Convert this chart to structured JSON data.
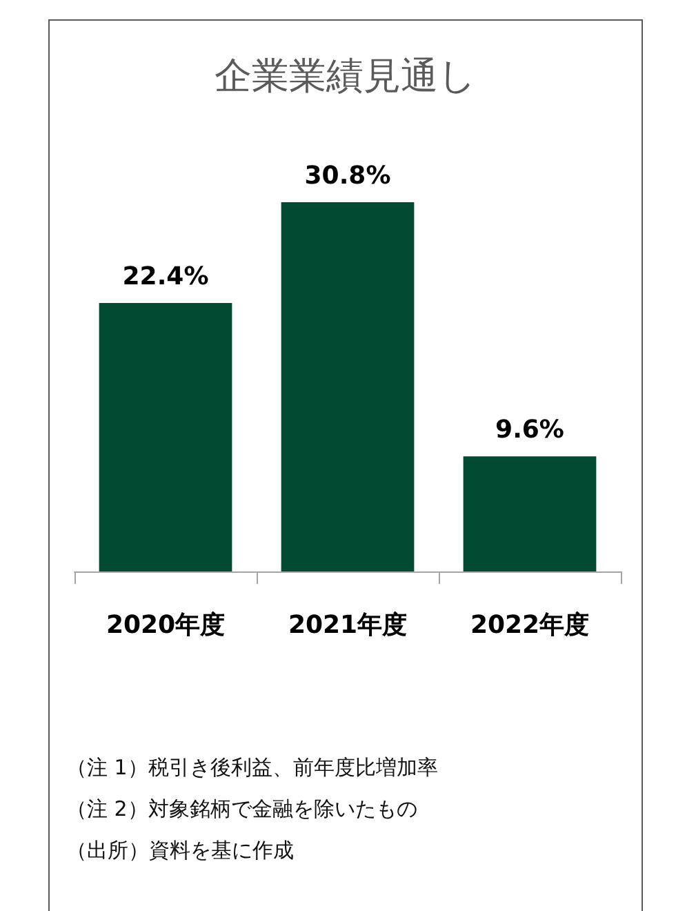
{
  "chart_data": {
    "type": "bar",
    "title": "企業業績見通し",
    "categories": [
      "2020年度",
      "2021年度",
      "2022年度"
    ],
    "values": [
      22.4,
      30.8,
      9.6
    ],
    "value_labels": [
      "22.4%",
      "30.8%",
      "9.6%"
    ],
    "color": "#024a32",
    "annotations": [
      "（注 1）税引き後利益、前年度比増加率",
      "（注 2）対象銘柄で金融を除いたもの",
      "（出所）資料を基に作成"
    ]
  }
}
